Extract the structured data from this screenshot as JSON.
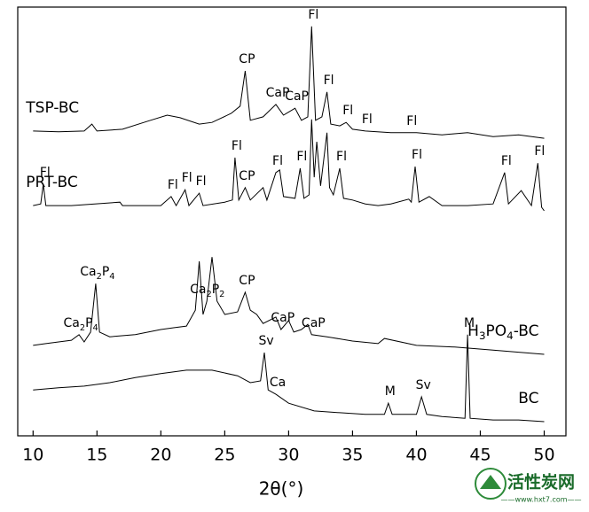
{
  "chart_data": {
    "type": "line",
    "x_label": "2θ(°)",
    "xlim": [
      8.8,
      51.7
    ],
    "xticks": [
      10,
      15,
      20,
      25,
      30,
      35,
      40,
      45,
      50
    ],
    "ylim": [
      0,
      100
    ],
    "color": "#000000",
    "series": [
      {
        "name": "TSP-BC",
        "label_position": "left",
        "x": [
          10,
          12,
          14,
          14.6,
          15,
          17,
          19,
          20.5,
          21.5,
          23,
          24,
          25.5,
          26.2,
          26.6,
          27,
          28,
          29,
          29.6,
          30.5,
          31,
          31.5,
          31.8,
          32.1,
          32.6,
          33,
          33.3,
          34,
          34.5,
          35,
          36,
          38,
          40,
          42,
          44,
          46,
          48,
          50
        ],
        "values": [
          71.1,
          70.9,
          71.1,
          72.7,
          71.1,
          71.5,
          73.4,
          74.8,
          74.2,
          72.7,
          73.1,
          75.2,
          76.9,
          85.1,
          73.6,
          74.4,
          77.3,
          74.8,
          76.4,
          73.6,
          74.4,
          95.5,
          73.6,
          74.4,
          80.2,
          72.7,
          72.3,
          73.1,
          71.5,
          71.1,
          70.7,
          70.7,
          70.2,
          70.7,
          69.8,
          70.2,
          69.4
        ],
        "peaks": [
          {
            "label": "CP",
            "x": 26.6
          },
          {
            "label": "CaP",
            "x": 29
          },
          {
            "label": "CaP",
            "x": 30.5
          },
          {
            "label": "Fl",
            "x": 31.8
          },
          {
            "label": "Fl",
            "x": 33
          },
          {
            "label": "Fl",
            "x": 34.5
          },
          {
            "label": "Fl",
            "x": 36
          },
          {
            "label": "Fl",
            "x": 39.5
          }
        ]
      },
      {
        "name": "PRT-BC",
        "label_position": "left",
        "x": [
          10,
          10.6,
          10.8,
          11,
          13,
          16.8,
          17,
          20,
          20.8,
          21.2,
          21.9,
          22.2,
          23,
          23.3,
          25,
          25.6,
          25.8,
          26.1,
          26.6,
          27,
          28,
          28.3,
          29,
          29.3,
          29.6,
          30.5,
          30.9,
          31.2,
          31.6,
          31.8,
          32,
          32.2,
          32.5,
          33,
          33.2,
          33.5,
          34,
          34.3,
          35,
          36,
          37,
          38,
          39.4,
          39.6,
          39.9,
          40.2,
          41,
          42,
          44,
          46,
          46.9,
          47.2,
          48.2,
          49,
          49.5,
          49.8,
          50
        ],
        "values": [
          53.7,
          54.1,
          58.7,
          53.7,
          53.7,
          54.5,
          53.7,
          53.7,
          55.8,
          53.7,
          57.4,
          53.7,
          56.6,
          53.7,
          54.5,
          55.0,
          64.9,
          55.0,
          57.9,
          55.0,
          57.9,
          55.0,
          61.4,
          62.0,
          55.8,
          55.4,
          62.4,
          55.4,
          56.2,
          73.8,
          60.3,
          68.6,
          58.3,
          70.7,
          57.9,
          56.2,
          62.4,
          55.4,
          55.0,
          54.1,
          53.7,
          54.1,
          55.2,
          54.5,
          62.8,
          54.5,
          55.8,
          53.7,
          53.7,
          54.1,
          61.4,
          54.1,
          57.2,
          53.7,
          63.6,
          53.3,
          52.5
        ],
        "peaks": [
          {
            "label": "Fl",
            "x": 10.8
          },
          {
            "label": "Fl",
            "x": 20.8
          },
          {
            "label": "Fl",
            "x": 21.9
          },
          {
            "label": "Fl",
            "x": 23
          },
          {
            "label": "Fl",
            "x": 25.8
          },
          {
            "label": "CP",
            "x": 26.6
          },
          {
            "label": "Fl",
            "x": 29
          },
          {
            "label": "Fl",
            "x": 30.9
          },
          {
            "label": "Fl",
            "x": 34
          },
          {
            "label": "Fl",
            "x": 39.9
          },
          {
            "label": "Fl",
            "x": 46.9
          },
          {
            "label": "Fl",
            "x": 49.5
          }
        ]
      },
      {
        "name": "H3PO4-BC",
        "label_position": "right",
        "x": [
          10,
          11,
          12,
          13,
          13.6,
          14,
          14.5,
          14.9,
          15.2,
          16,
          18,
          20,
          21,
          22,
          22.7,
          23,
          23.3,
          23.6,
          24,
          24.4,
          25,
          26,
          26.6,
          27,
          27.5,
          28,
          29,
          29.4,
          30,
          30.4,
          31,
          31.5,
          31.8,
          33,
          35,
          37,
          37.5,
          40,
          43,
          46,
          50
        ],
        "values": [
          21.1,
          21.5,
          21.9,
          22.3,
          23.6,
          21.9,
          24.2,
          35.5,
          24.2,
          23.1,
          23.6,
          24.8,
          25.2,
          25.6,
          29.3,
          40.7,
          28.3,
          31.4,
          41.7,
          31.4,
          28.3,
          28.9,
          33.5,
          29.3,
          28.3,
          26.2,
          27.7,
          24.8,
          26.9,
          24.2,
          24.8,
          26.0,
          23.6,
          23.1,
          22.1,
          21.5,
          22.7,
          21.1,
          20.7,
          20.0,
          19.0
        ],
        "peaks": [
          {
            "label": "Ca2P4",
            "x": 13.6
          },
          {
            "label": "Ca2P4",
            "x": 14.9
          },
          {
            "label": "Ca2P2",
            "x": 23.5
          },
          {
            "label": "CP",
            "x": 26.6
          },
          {
            "label": "CaP",
            "x": 29.4
          },
          {
            "label": "CaP",
            "x": 31.8
          }
        ]
      },
      {
        "name": "BC",
        "label_position": "right",
        "x": [
          10,
          12,
          14,
          16,
          18,
          20,
          22,
          24,
          26,
          27,
          27.8,
          28.1,
          28.4,
          29,
          30,
          32,
          34,
          36,
          37.5,
          37.8,
          38.1,
          40,
          40.4,
          40.8,
          42,
          43.8,
          44,
          44.2,
          46,
          48,
          50
        ],
        "values": [
          10.7,
          11.2,
          11.6,
          12.4,
          13.6,
          14.5,
          15.3,
          15.3,
          14.0,
          12.4,
          12.8,
          19.4,
          10.7,
          9.7,
          7.6,
          5.8,
          5.4,
          5.0,
          5.0,
          7.6,
          5.0,
          5.0,
          9.1,
          5.0,
          4.5,
          4.1,
          23.6,
          4.1,
          3.7,
          3.7,
          3.3
        ],
        "peaks": [
          {
            "label": "Sv",
            "x": 28.1
          },
          {
            "label": "Ca",
            "x": 29
          },
          {
            "label": "M",
            "x": 37.8
          },
          {
            "label": "Sv",
            "x": 40.4
          },
          {
            "label": "M",
            "x": 44
          }
        ]
      }
    ]
  },
  "watermark": {
    "title": "活性炭网",
    "url": "——www.hxt7.com——"
  }
}
